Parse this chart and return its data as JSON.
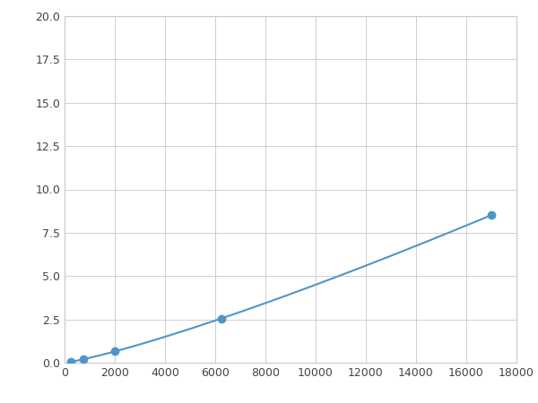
{
  "x_points": [
    250,
    500,
    750,
    2000,
    6250,
    17000
  ],
  "y_points": [
    0.07,
    0.12,
    0.16,
    0.55,
    2.5,
    10.0
  ],
  "marker_x": [
    250,
    750,
    2000,
    6250,
    17000
  ],
  "marker_y": [
    0.07,
    0.16,
    0.55,
    2.5,
    10.0
  ],
  "line_color": "#4e96c8",
  "marker_color": "#4e96c8",
  "marker_size": 36,
  "xlim": [
    0,
    18000
  ],
  "ylim": [
    0,
    20.0
  ],
  "xticks": [
    0,
    2000,
    4000,
    6000,
    8000,
    10000,
    12000,
    14000,
    16000,
    18000
  ],
  "yticks": [
    0.0,
    2.5,
    5.0,
    7.5,
    10.0,
    12.5,
    15.0,
    17.5,
    20.0
  ],
  "grid_color": "#c8c8c8",
  "background_color": "#ffffff",
  "line_width": 1.5,
  "power_a": 5.8e-05,
  "power_b": 1.38
}
